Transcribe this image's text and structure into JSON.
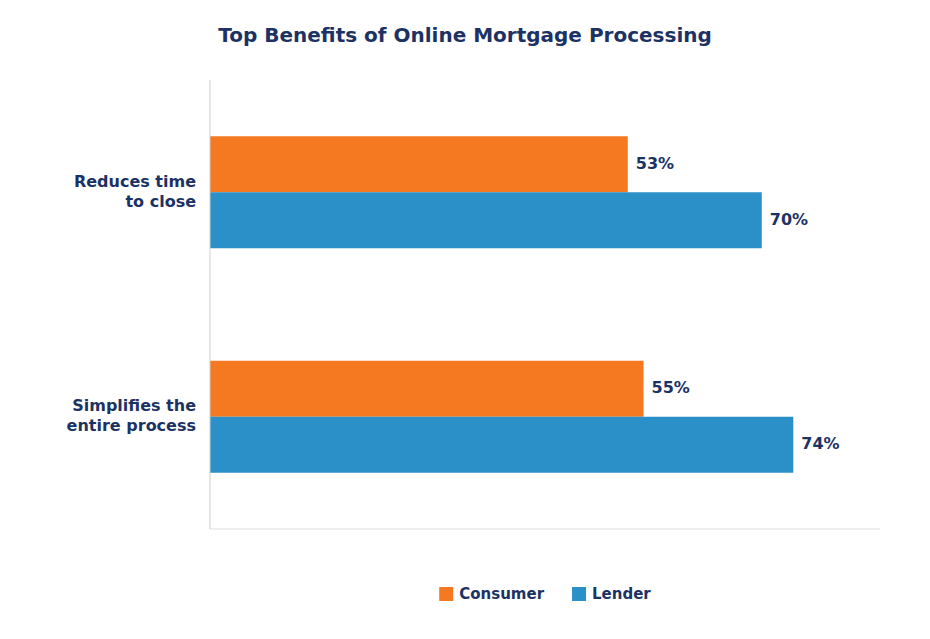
{
  "chart_data": {
    "type": "bar",
    "orientation": "horizontal",
    "title": "Top Benefits of Online Mortgage Processing",
    "categories": [
      "Reduces time\nto close",
      "Simplifies the\nentire process"
    ],
    "series": [
      {
        "name": "Consumer",
        "color": "#F47920",
        "values": [
          53,
          55
        ],
        "value_labels": [
          "53%",
          "55%"
        ]
      },
      {
        "name": "Lender",
        "color": "#2B90C8",
        "values": [
          70,
          74
        ],
        "value_labels": [
          "70%",
          "74%"
        ]
      }
    ],
    "xlim": [
      0,
      85
    ],
    "grid": false,
    "legend": "bottom",
    "data_labels": true,
    "tick_labels": "y"
  }
}
